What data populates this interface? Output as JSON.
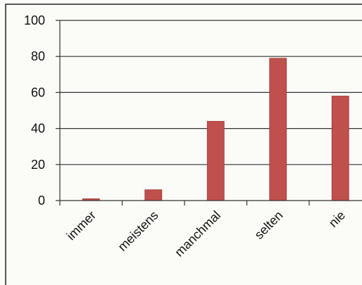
{
  "chart_data": {
    "type": "bar",
    "title": "",
    "xlabel": "",
    "ylabel": "",
    "categories": [
      "immer",
      "meistens",
      "manchmal",
      "selten",
      "nie"
    ],
    "values": [
      1,
      6,
      44,
      79,
      58
    ],
    "ylim": [
      0,
      100
    ],
    "yticks": [
      0,
      20,
      40,
      60,
      80,
      100
    ],
    "grid": true,
    "legend": "none",
    "bar_color": "#c0504d"
  }
}
